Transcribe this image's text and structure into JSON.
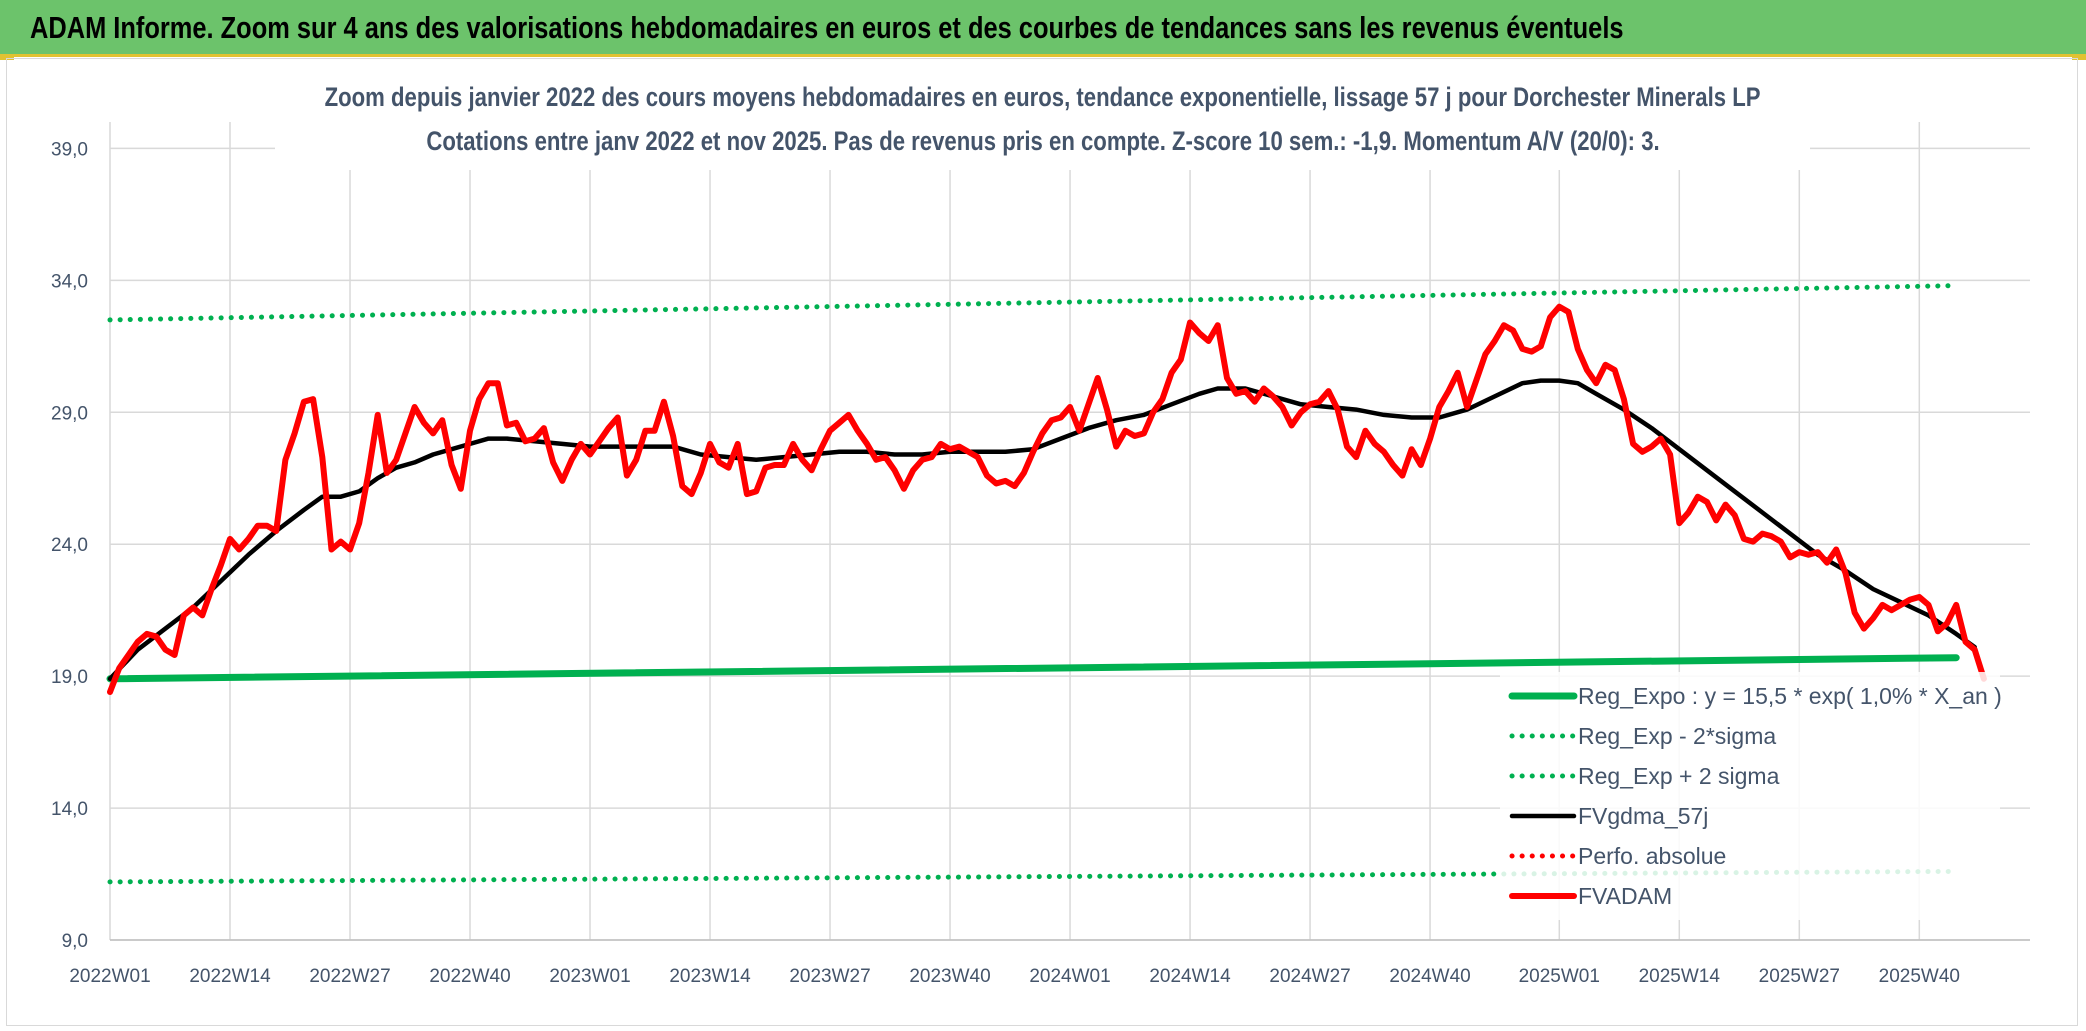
{
  "banner": {
    "title": "ADAM Informe. Zoom sur 4 ans des valorisations hebdomadaires en euros et des courbes de tendances sans les revenus éventuels",
    "background": "#6cc36b",
    "accent": "#e1c232"
  },
  "chart_data": {
    "type": "line",
    "title": "Zoom depuis janvier 2022 des cours moyens hebdomadaires en euros, tendance exponentielle, lissage 57 j pour Dorchester Minerals LP",
    "subtitle": "Cotations entre janv 2022 et nov 2025. Pas de revenus pris en compte. Z-score 10 sem.: -1,9. Momentum A/V (20/0): 3.",
    "xlabel": "",
    "ylabel": "",
    "ylim": [
      9,
      40
    ],
    "x_range": [
      1,
      200
    ],
    "y_ticks": [
      "9,0",
      "14,0",
      "19,0",
      "24,0",
      "29,0",
      "34,0",
      "39,0"
    ],
    "y_tick_values": [
      9,
      14,
      19,
      24,
      29,
      34,
      39
    ],
    "x_ticks": [
      "2022W01",
      "2022W14",
      "2022W27",
      "2022W40",
      "2023W01",
      "2023W14",
      "2023W27",
      "2023W40",
      "2024W01",
      "2024W14",
      "2024W27",
      "2024W40",
      "2025W01",
      "2025W14",
      "2025W27",
      "2025W40"
    ],
    "x_tick_values": [
      1,
      14,
      27,
      40,
      53,
      66,
      79,
      92,
      105,
      118,
      131,
      144,
      158,
      171,
      184,
      197
    ],
    "grid": true,
    "legend_position": "bottom-right",
    "series": [
      {
        "name": "Reg_Expo : y = 15,5 * exp( 1,0% *  X_an )",
        "color": "#00b050",
        "style": "solid-thick",
        "points": [
          [
            1,
            18.9
          ],
          [
            201,
            19.7
          ]
        ]
      },
      {
        "name": "Reg_Exp - 2*sigma",
        "color": "#00b050",
        "style": "dotted",
        "points": [
          [
            1,
            11.2
          ],
          [
            201,
            11.6
          ]
        ]
      },
      {
        "name": "Reg_Exp + 2 sigma",
        "color": "#00b050",
        "style": "dotted",
        "points": [
          [
            1,
            32.5
          ],
          [
            201,
            33.8
          ]
        ]
      },
      {
        "name": "FVgdma_57j",
        "color": "#000000",
        "style": "solid",
        "points": [
          [
            1,
            18.9
          ],
          [
            4,
            20.0
          ],
          [
            7,
            20.8
          ],
          [
            10,
            21.6
          ],
          [
            13,
            22.6
          ],
          [
            16,
            23.6
          ],
          [
            19,
            24.5
          ],
          [
            22,
            25.3
          ],
          [
            24,
            25.8
          ],
          [
            26,
            25.8
          ],
          [
            28,
            26.0
          ],
          [
            30,
            26.5
          ],
          [
            32,
            26.9
          ],
          [
            34,
            27.1
          ],
          [
            36,
            27.4
          ],
          [
            38,
            27.6
          ],
          [
            40,
            27.8
          ],
          [
            42,
            28.0
          ],
          [
            44,
            28.0
          ],
          [
            47,
            27.9
          ],
          [
            50,
            27.8
          ],
          [
            53,
            27.7
          ],
          [
            56,
            27.7
          ],
          [
            59,
            27.7
          ],
          [
            62,
            27.7
          ],
          [
            65,
            27.4
          ],
          [
            68,
            27.3
          ],
          [
            71,
            27.2
          ],
          [
            74,
            27.3
          ],
          [
            77,
            27.4
          ],
          [
            80,
            27.5
          ],
          [
            83,
            27.5
          ],
          [
            86,
            27.4
          ],
          [
            89,
            27.4
          ],
          [
            92,
            27.5
          ],
          [
            95,
            27.5
          ],
          [
            98,
            27.5
          ],
          [
            101,
            27.6
          ],
          [
            104,
            28.0
          ],
          [
            107,
            28.4
          ],
          [
            110,
            28.7
          ],
          [
            113,
            28.9
          ],
          [
            116,
            29.3
          ],
          [
            119,
            29.7
          ],
          [
            121,
            29.9
          ],
          [
            124,
            29.9
          ],
          [
            127,
            29.6
          ],
          [
            130,
            29.3
          ],
          [
            133,
            29.2
          ],
          [
            136,
            29.1
          ],
          [
            139,
            28.9
          ],
          [
            142,
            28.8
          ],
          [
            145,
            28.8
          ],
          [
            148,
            29.1
          ],
          [
            151,
            29.6
          ],
          [
            154,
            30.1
          ],
          [
            156,
            30.2
          ],
          [
            158,
            30.2
          ],
          [
            160,
            30.1
          ],
          [
            162,
            29.7
          ],
          [
            165,
            29.1
          ],
          [
            168,
            28.4
          ],
          [
            171,
            27.6
          ],
          [
            174,
            26.8
          ],
          [
            177,
            26.0
          ],
          [
            180,
            25.2
          ],
          [
            183,
            24.4
          ],
          [
            186,
            23.6
          ],
          [
            189,
            23.0
          ],
          [
            192,
            22.3
          ],
          [
            195,
            21.8
          ],
          [
            198,
            21.3
          ],
          [
            201,
            20.6
          ],
          [
            203,
            20.1
          ]
        ]
      },
      {
        "name": "Perfo. absolue",
        "color": "#ff0000",
        "style": "dotted",
        "points": []
      },
      {
        "name": "FVADAM",
        "color": "#ff0000",
        "style": "solid-thick",
        "points": [
          [
            1,
            18.4
          ],
          [
            2,
            19.3
          ],
          [
            3,
            19.8
          ],
          [
            4,
            20.3
          ],
          [
            5,
            20.6
          ],
          [
            6,
            20.5
          ],
          [
            7,
            20.0
          ],
          [
            8,
            19.8
          ],
          [
            9,
            21.3
          ],
          [
            10,
            21.6
          ],
          [
            11,
            21.3
          ],
          [
            12,
            22.3
          ],
          [
            13,
            23.2
          ],
          [
            14,
            24.2
          ],
          [
            15,
            23.8
          ],
          [
            16,
            24.2
          ],
          [
            17,
            24.7
          ],
          [
            18,
            24.7
          ],
          [
            19,
            24.5
          ],
          [
            20,
            27.2
          ],
          [
            21,
            28.2
          ],
          [
            22,
            29.4
          ],
          [
            23,
            29.5
          ],
          [
            24,
            27.3
          ],
          [
            25,
            23.8
          ],
          [
            26,
            24.1
          ],
          [
            27,
            23.8
          ],
          [
            28,
            24.8
          ],
          [
            29,
            26.7
          ],
          [
            30,
            28.9
          ],
          [
            31,
            26.7
          ],
          [
            32,
            27.2
          ],
          [
            33,
            28.2
          ],
          [
            34,
            29.2
          ],
          [
            35,
            28.6
          ],
          [
            36,
            28.2
          ],
          [
            37,
            28.7
          ],
          [
            38,
            27.0
          ],
          [
            39,
            26.1
          ],
          [
            40,
            28.3
          ],
          [
            41,
            29.5
          ],
          [
            42,
            30.1
          ],
          [
            43,
            30.1
          ],
          [
            44,
            28.5
          ],
          [
            45,
            28.6
          ],
          [
            46,
            27.9
          ],
          [
            47,
            28.0
          ],
          [
            48,
            28.4
          ],
          [
            49,
            27.1
          ],
          [
            50,
            26.4
          ],
          [
            51,
            27.2
          ],
          [
            52,
            27.8
          ],
          [
            53,
            27.4
          ],
          [
            54,
            27.9
          ],
          [
            55,
            28.4
          ],
          [
            56,
            28.8
          ],
          [
            57,
            26.6
          ],
          [
            58,
            27.2
          ],
          [
            59,
            28.3
          ],
          [
            60,
            28.3
          ],
          [
            61,
            29.4
          ],
          [
            62,
            28.1
          ],
          [
            63,
            26.2
          ],
          [
            64,
            25.9
          ],
          [
            65,
            26.7
          ],
          [
            66,
            27.8
          ],
          [
            67,
            27.1
          ],
          [
            68,
            26.9
          ],
          [
            69,
            27.8
          ],
          [
            70,
            25.9
          ],
          [
            71,
            26.0
          ],
          [
            72,
            26.9
          ],
          [
            73,
            27.0
          ],
          [
            74,
            27.0
          ],
          [
            75,
            27.8
          ],
          [
            76,
            27.2
          ],
          [
            77,
            26.8
          ],
          [
            78,
            27.6
          ],
          [
            79,
            28.3
          ],
          [
            80,
            28.6
          ],
          [
            81,
            28.9
          ],
          [
            82,
            28.3
          ],
          [
            83,
            27.8
          ],
          [
            84,
            27.2
          ],
          [
            85,
            27.3
          ],
          [
            86,
            26.8
          ],
          [
            87,
            26.1
          ],
          [
            88,
            26.8
          ],
          [
            89,
            27.2
          ],
          [
            90,
            27.3
          ],
          [
            91,
            27.8
          ],
          [
            92,
            27.6
          ],
          [
            93,
            27.7
          ],
          [
            94,
            27.5
          ],
          [
            95,
            27.3
          ],
          [
            96,
            26.6
          ],
          [
            97,
            26.3
          ],
          [
            98,
            26.4
          ],
          [
            99,
            26.2
          ],
          [
            100,
            26.7
          ],
          [
            101,
            27.5
          ],
          [
            102,
            28.2
          ],
          [
            103,
            28.7
          ],
          [
            104,
            28.8
          ],
          [
            105,
            29.2
          ],
          [
            106,
            28.3
          ],
          [
            107,
            29.3
          ],
          [
            108,
            30.3
          ],
          [
            109,
            29.1
          ],
          [
            110,
            27.7
          ],
          [
            111,
            28.3
          ],
          [
            112,
            28.1
          ],
          [
            113,
            28.2
          ],
          [
            114,
            29.0
          ],
          [
            115,
            29.5
          ],
          [
            116,
            30.5
          ],
          [
            117,
            31.0
          ],
          [
            118,
            32.4
          ],
          [
            119,
            32.0
          ],
          [
            120,
            31.7
          ],
          [
            121,
            32.3
          ],
          [
            122,
            30.3
          ],
          [
            123,
            29.7
          ],
          [
            124,
            29.8
          ],
          [
            125,
            29.4
          ],
          [
            126,
            29.9
          ],
          [
            127,
            29.6
          ],
          [
            128,
            29.2
          ],
          [
            129,
            28.5
          ],
          [
            130,
            29.0
          ],
          [
            131,
            29.3
          ],
          [
            132,
            29.4
          ],
          [
            133,
            29.8
          ],
          [
            134,
            29.1
          ],
          [
            135,
            27.7
          ],
          [
            136,
            27.3
          ],
          [
            137,
            28.3
          ],
          [
            138,
            27.8
          ],
          [
            139,
            27.5
          ],
          [
            140,
            27.0
          ],
          [
            141,
            26.6
          ],
          [
            142,
            27.6
          ],
          [
            143,
            27.0
          ],
          [
            144,
            28.0
          ],
          [
            145,
            29.2
          ],
          [
            146,
            29.8
          ],
          [
            147,
            30.5
          ],
          [
            148,
            29.2
          ],
          [
            149,
            30.2
          ],
          [
            150,
            31.2
          ],
          [
            151,
            31.7
          ],
          [
            152,
            32.3
          ],
          [
            153,
            32.1
          ],
          [
            154,
            31.4
          ],
          [
            155,
            31.3
          ],
          [
            156,
            31.5
          ],
          [
            157,
            32.6
          ],
          [
            158,
            33.0
          ],
          [
            159,
            32.8
          ],
          [
            160,
            31.4
          ],
          [
            161,
            30.6
          ],
          [
            162,
            30.1
          ],
          [
            163,
            30.8
          ],
          [
            164,
            30.6
          ],
          [
            165,
            29.5
          ],
          [
            166,
            27.8
          ],
          [
            167,
            27.5
          ],
          [
            168,
            27.7
          ],
          [
            169,
            28.0
          ],
          [
            170,
            27.4
          ],
          [
            171,
            24.8
          ],
          [
            172,
            25.2
          ],
          [
            173,
            25.8
          ],
          [
            174,
            25.6
          ],
          [
            175,
            24.9
          ],
          [
            176,
            25.5
          ],
          [
            177,
            25.1
          ],
          [
            178,
            24.2
          ],
          [
            179,
            24.1
          ],
          [
            180,
            24.4
          ],
          [
            181,
            24.3
          ],
          [
            182,
            24.1
          ],
          [
            183,
            23.5
          ],
          [
            184,
            23.7
          ],
          [
            185,
            23.6
          ],
          [
            186,
            23.7
          ],
          [
            187,
            23.3
          ],
          [
            188,
            23.8
          ],
          [
            189,
            22.9
          ],
          [
            190,
            21.4
          ],
          [
            191,
            20.8
          ],
          [
            192,
            21.2
          ],
          [
            193,
            21.7
          ],
          [
            194,
            21.5
          ],
          [
            195,
            21.7
          ],
          [
            196,
            21.9
          ],
          [
            197,
            22.0
          ],
          [
            198,
            21.7
          ],
          [
            199,
            20.7
          ],
          [
            200,
            21.0
          ],
          [
            201,
            21.7
          ],
          [
            202,
            20.3
          ],
          [
            203,
            20.0
          ],
          [
            204,
            18.9
          ]
        ]
      }
    ]
  }
}
